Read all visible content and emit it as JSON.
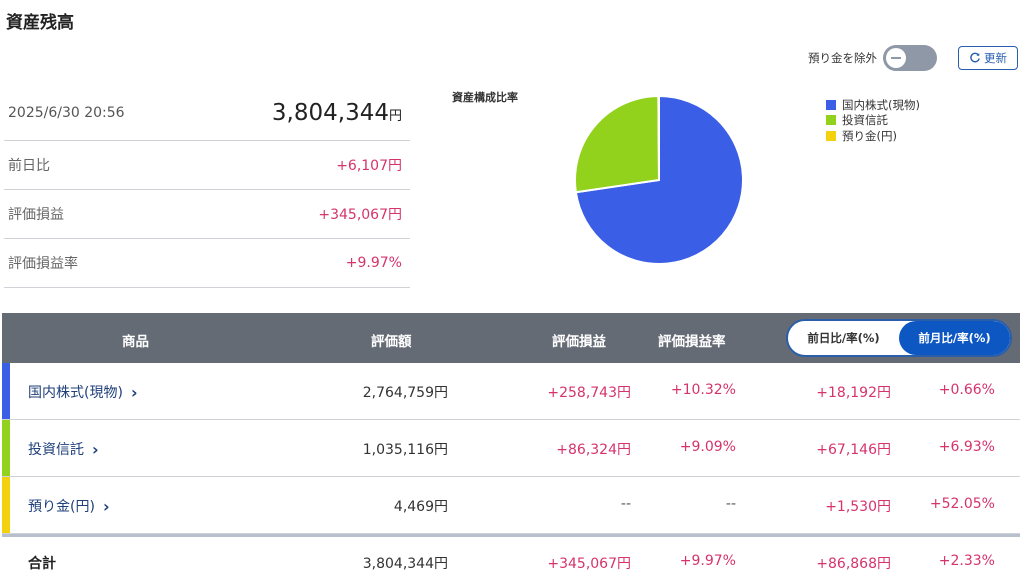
{
  "page_title": "資産残高",
  "controls": {
    "exclude_deposit_label": "預り金を除外",
    "refresh_label": "更新"
  },
  "summary": {
    "datetime": "2025/6/30 20:56",
    "total_amount": "3,804,344",
    "total_unit": "円",
    "rows": [
      {
        "label": "前日比",
        "value": "+6,107円"
      },
      {
        "label": "評価損益",
        "value": "+345,067円"
      },
      {
        "label": "評価損益率",
        "value": "+9.97%"
      }
    ]
  },
  "chart_data": {
    "type": "pie",
    "title": "資産構成比率",
    "legend_position": "top-right",
    "categories": [
      "国内株式(現物)",
      "投資信託",
      "預り金(円)"
    ],
    "values": [
      2764759,
      1035116,
      4469
    ],
    "colors": [
      "#3b5ee6",
      "#92d11c",
      "#f3d10e"
    ]
  },
  "table": {
    "headers": {
      "product": "商品",
      "amount": "評価額",
      "gain": "評価損益",
      "gain_rate": "評価損益率",
      "period_day": "前日比/率(%)",
      "period_month": "前月比/率(%)"
    },
    "rows": [
      {
        "name": "国内株式(現物)",
        "amount": "2,764,759円",
        "gain": "+258,743円",
        "gain_rate": "+10.32%",
        "change": "+18,192円",
        "change_rate": "+0.66%",
        "color": "#3b5ee6"
      },
      {
        "name": "投資信託",
        "amount": "1,035,116円",
        "gain": "+86,324円",
        "gain_rate": "+9.09%",
        "change": "+67,146円",
        "change_rate": "+6.93%",
        "color": "#92d11c"
      },
      {
        "name": "預り金(円)",
        "amount": "4,469円",
        "gain": "--",
        "gain_rate": "--",
        "change": "+1,530円",
        "change_rate": "+52.05%",
        "color": "#f3d10e"
      }
    ],
    "total": {
      "name": "合計",
      "amount": "3,804,344円",
      "gain": "+345,067円",
      "gain_rate": "+9.97%",
      "change": "+86,868円",
      "change_rate": "+2.33%"
    }
  }
}
